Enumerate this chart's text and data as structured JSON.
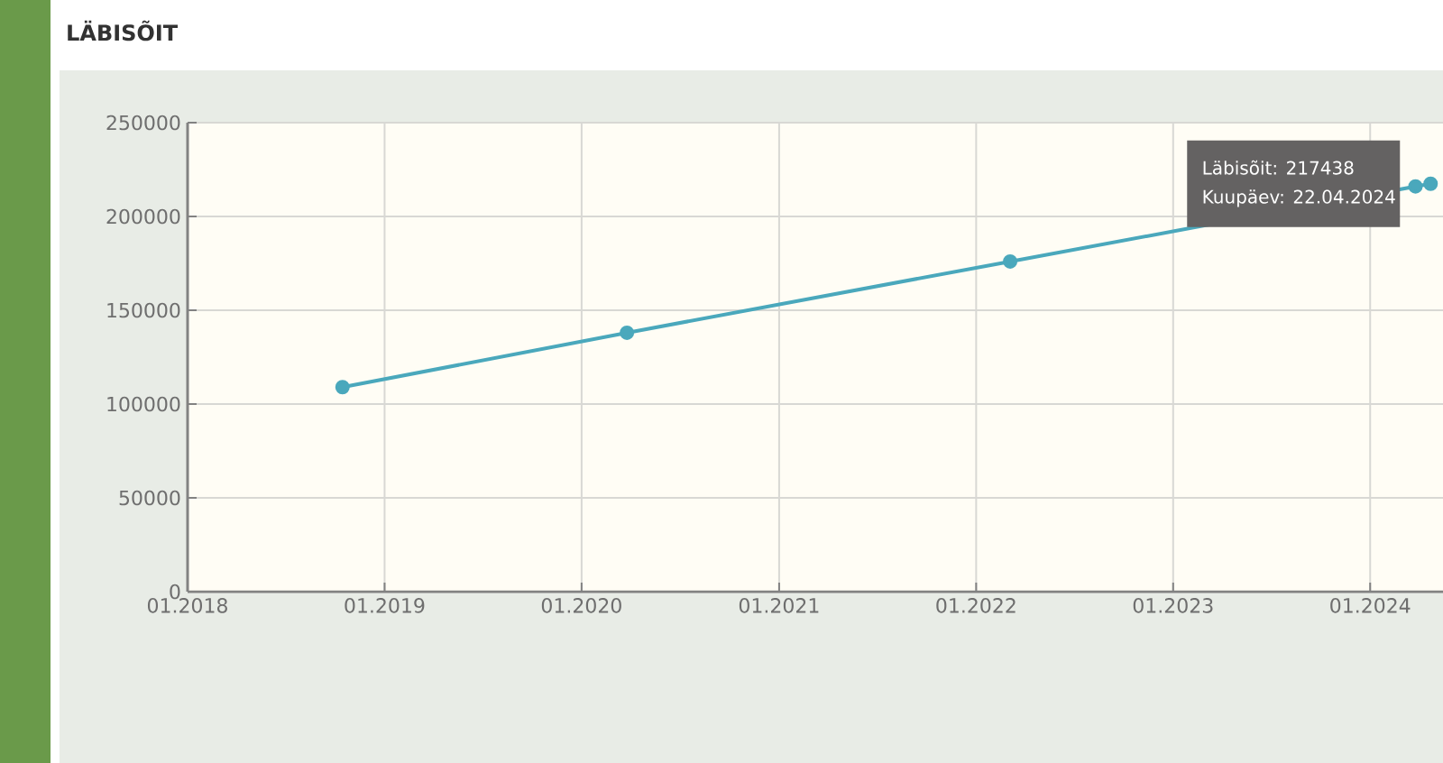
{
  "chart_data": {
    "type": "line",
    "title": "LÄBISÕIT",
    "x": [
      "2018-10-15",
      "2020-03-25",
      "2022-03-05",
      "2024-03-25",
      "2024-04-22"
    ],
    "series": [
      {
        "color": "#4aa8bc",
        "values": [
          109000,
          138000,
          176000,
          216000,
          217438
        ]
      }
    ],
    "xlim": [
      "2018-01-01",
      "2024-05-15"
    ],
    "xticks": [
      {
        "value": "2018-01-01",
        "label": "01.2018"
      },
      {
        "value": "2019-01-01",
        "label": "01.2019"
      },
      {
        "value": "2020-01-01",
        "label": "01.2020"
      },
      {
        "value": "2021-01-01",
        "label": "01.2021"
      },
      {
        "value": "2022-01-01",
        "label": "01.2022"
      },
      {
        "value": "2023-01-01",
        "label": "01.2023"
      },
      {
        "value": "2024-01-01",
        "label": "01.2024"
      }
    ],
    "ylim": [
      0,
      250000
    ],
    "yticks": [
      0,
      50000,
      100000,
      150000,
      200000,
      250000
    ],
    "grid": true,
    "marker": "circle",
    "line_style": "solid",
    "annotations": [
      "Läbisõit: 217438",
      "Kuupäev: 22.04.2024"
    ]
  }
}
